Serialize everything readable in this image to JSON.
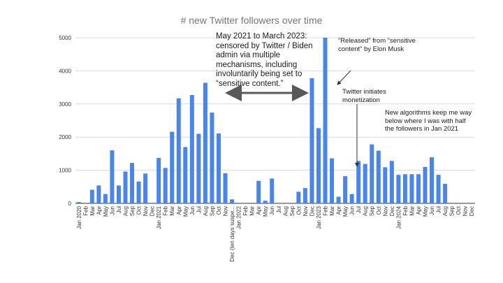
{
  "chart_data": {
    "type": "bar",
    "title": "# new Twitter followers over time",
    "xlabel": "",
    "ylabel": "",
    "ylim": [
      0,
      5000
    ],
    "yticks": [
      0,
      1000,
      2000,
      3000,
      4000,
      5000
    ],
    "grid": true,
    "bar_color": "#4a86e8",
    "categories": [
      "Jan 2020",
      "Feb",
      "Mar",
      "Apr",
      "May",
      "Jun",
      "Jul",
      "Aug",
      "Sep",
      "Oct",
      "Nov",
      "Dec",
      "Jan 2021",
      "Feb",
      "Mar",
      "Apr",
      "May",
      "Jun",
      "Jul",
      "Aug",
      "Sep",
      "Oct",
      "Nov",
      "Dec (ten days suspe...",
      "Jan 2022",
      "Feb",
      "Mar",
      "Apr",
      "May",
      "Jun",
      "Jul",
      "Aug",
      "Sep",
      "Oct",
      "Nov",
      "Dec",
      "Jan 2023",
      "Feb",
      "Mar",
      "Apr",
      "May",
      "Jun",
      "Jul",
      "Aug",
      "Sep",
      "Oct",
      "Nov",
      "Dec",
      "Jan 2024",
      "Feb",
      "Mar",
      "Apr",
      "May",
      "Jun",
      "Jul",
      "Aug",
      "Sep",
      "Oct",
      "Nov",
      "Dec"
    ],
    "values": [
      40,
      0,
      410,
      540,
      280,
      1600,
      540,
      960,
      1220,
      660,
      900,
      0,
      1370,
      1070,
      2160,
      3170,
      1700,
      3270,
      2100,
      3640,
      2740,
      2110,
      910,
      120,
      0,
      0,
      0,
      680,
      80,
      750,
      0,
      0,
      0,
      350,
      460,
      3780,
      2270,
      5000,
      1360,
      200,
      820,
      280,
      1280,
      1190,
      1780,
      1590,
      1090,
      1280,
      860,
      880,
      880,
      880,
      1100,
      1390,
      860,
      590,
      0,
      0,
      0,
      0
    ],
    "annotations": [
      {
        "text": "May 2021 to March 2023: censored by Twitter / Biden admin via multiple mechanisms, including involuntarily being set to “sensitive content.”"
      },
      {
        "text": "“Released” from “sensitive content” by Elon Musk"
      },
      {
        "text": "Twitter initiates monetization"
      },
      {
        "text": "New algorithms keep me way below where I was with half the followers in Jan 2021"
      }
    ]
  }
}
